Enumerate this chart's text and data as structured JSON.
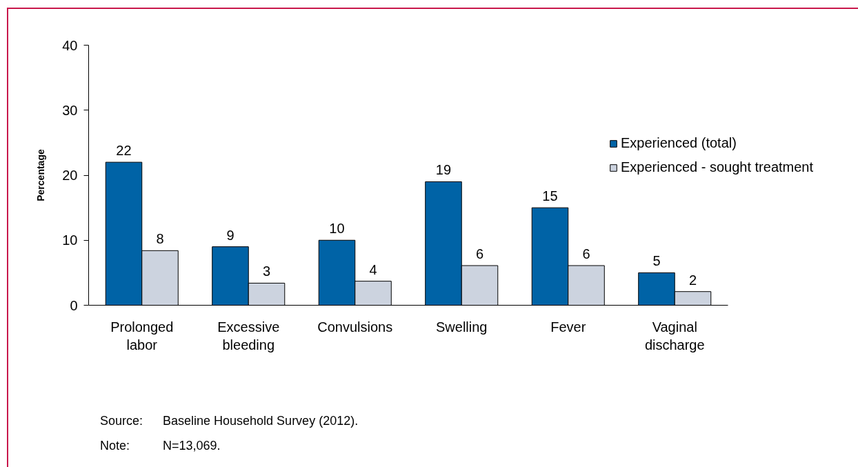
{
  "chart_data": {
    "type": "bar",
    "ylabel": "Percentage",
    "categories": [
      "Prolonged labor",
      "Excessive bleeding",
      "Convulsions",
      "Swelling",
      "Fever",
      "Vaginal discharge"
    ],
    "series": [
      {
        "name": "Experienced (total)",
        "color": "#0063a6",
        "values": [
          22,
          9,
          10,
          19,
          15,
          5
        ],
        "value_labels": [
          "22",
          "9",
          "10",
          "19",
          "15",
          "5"
        ]
      },
      {
        "name": "Experienced - sought treatment",
        "color": "#ccd3df",
        "values": [
          8.4,
          3.4,
          3.7,
          6.1,
          6.1,
          2.1
        ],
        "value_labels": [
          "8",
          "3",
          "4",
          "6",
          "6",
          "2"
        ]
      }
    ],
    "ylim": [
      0,
      40
    ],
    "yticks": [
      0,
      10,
      20,
      30,
      40
    ],
    "grid": false,
    "legend": "right",
    "annotations": [
      "Source:\tBaseline Household Survey (2012).",
      "Note:\tN=13,069."
    ]
  }
}
